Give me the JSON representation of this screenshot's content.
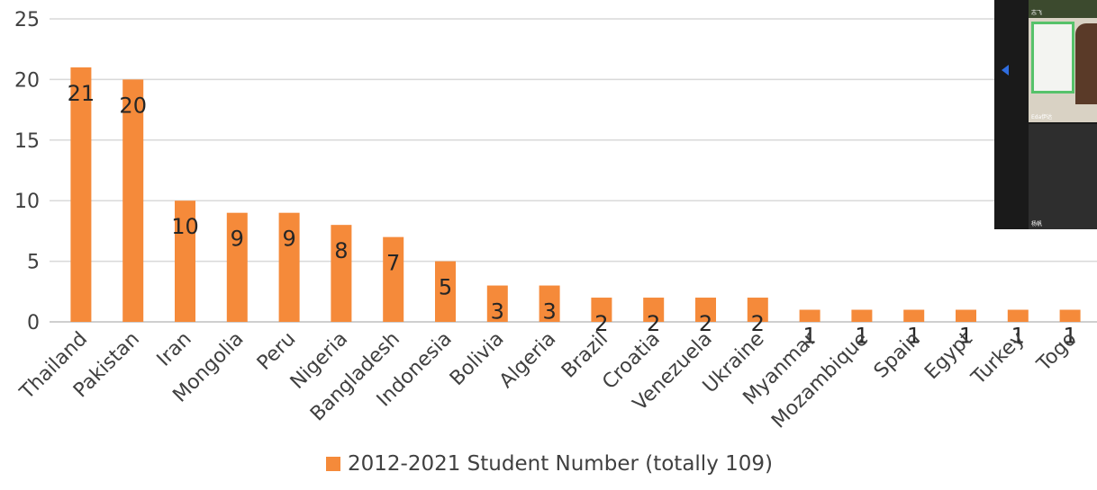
{
  "chart_data": {
    "type": "bar",
    "categories": [
      "Thailand",
      "Pakistan",
      "Iran",
      "Mongolia",
      "Peru",
      "Nigeria",
      "Bangladesh",
      "Indonesia",
      "Bolivia",
      "Algeria",
      "Brazil",
      "Croatia",
      "Venezuela",
      "Ukraine",
      "Myanmar",
      "Mozambique",
      "Spain",
      "Egypt",
      "Turkey",
      "Togo"
    ],
    "series": [
      {
        "name": "2012-2021 Student Number (totally 109)",
        "values": [
          21,
          20,
          10,
          9,
          9,
          8,
          7,
          5,
          3,
          3,
          2,
          2,
          2,
          2,
          1,
          1,
          1,
          1,
          1,
          1
        ]
      }
    ],
    "ylim": [
      0,
      25
    ],
    "yticks": [
      0,
      5,
      10,
      15,
      20,
      25
    ],
    "grid": true,
    "legend_position": "bottom",
    "colors": {
      "bar": "#f58a3a",
      "grid": "#d9d9d9",
      "text": "#404040"
    }
  },
  "video_panel": {
    "names": [
      "志飞",
      "Eda伊达",
      "杨帆"
    ]
  }
}
